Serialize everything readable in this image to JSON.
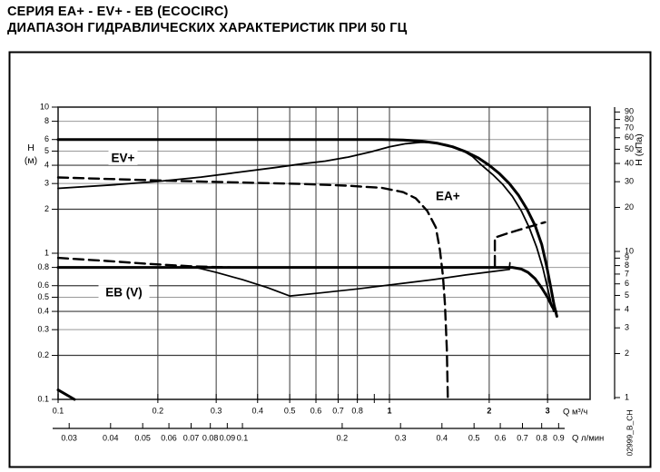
{
  "header": {
    "line1": "СЕРИЯ EA+ - EV+ - EB (ECOCIRC)",
    "line2": "ДИАПАЗОН ГИДРАВЛИЧЕСКИХ ХАРАКТЕРИСТИК ПРИ 50 ГЦ"
  },
  "watermark": "02999_B_CH",
  "colors": {
    "curve": "#000000",
    "grid_light": "#999999",
    "grid_dark": "#3c3c3c",
    "grid_vertical": "#4a4a4a",
    "plot_border": "#222222",
    "figure_border": "#000000"
  },
  "chart_data": {
    "type": "line",
    "log_x": true,
    "log_y": true,
    "title": "Диапазон гидравлических характеристик при 50 Гц",
    "x_axis_m3h": {
      "label": "Q  м³/ч",
      "range": [
        0.1,
        4.0
      ],
      "ticks_labeled": [
        0.1,
        0.2,
        0.3,
        0.4,
        0.5,
        0.6,
        0.7,
        0.8,
        1,
        2,
        3
      ],
      "ticks_unlabeled": [
        0.9
      ]
    },
    "x_axis_lmin": {
      "label": "Q  л/мин",
      "ticks": [
        0.03,
        0.04,
        0.05,
        0.06,
        0.07,
        0.08,
        0.09,
        0.1,
        0.2,
        0.3,
        0.4,
        0.5,
        0.6,
        0.7,
        0.8,
        0.9
      ],
      "conversion_to_m3h": 3.6
    },
    "y_axis_m": {
      "label_line1": "H",
      "label_line2": "(м)",
      "range": [
        0.1,
        10
      ],
      "ticks": [
        10,
        8,
        6,
        5,
        4,
        3,
        2,
        1,
        0.8,
        0.6,
        0.5,
        0.4,
        0.3,
        0.2,
        0.1
      ]
    },
    "y_axis_kpa": {
      "label": "H (кПа)",
      "ticks": [
        90,
        80,
        70,
        60,
        50,
        40,
        30,
        20,
        10,
        9,
        8,
        7,
        6,
        5,
        4,
        3,
        2,
        1
      ],
      "conversion_m_per_10kpa": 1
    },
    "gridlines": {
      "vertical_q": [
        0.2,
        0.3,
        0.4,
        0.5,
        0.6,
        0.7,
        0.8,
        1,
        2,
        3
      ],
      "horizontal_dark_h": [
        0.2,
        0.4,
        0.6,
        2,
        4
      ],
      "horizontal_light_h": [
        0.3,
        0.5,
        0.8,
        1,
        3,
        5,
        6,
        8
      ]
    },
    "series": [
      {
        "id": "ev-plus-max-curve",
        "style": "solid",
        "stroke_width": 3.0,
        "points": [
          [
            0.1,
            6
          ],
          [
            0.95,
            6
          ],
          [
            1.1,
            5.95
          ],
          [
            1.25,
            5.85
          ],
          [
            1.4,
            5.65
          ],
          [
            1.55,
            5.35
          ],
          [
            1.7,
            4.95
          ],
          [
            1.85,
            4.5
          ],
          [
            2.0,
            4.0
          ],
          [
            2.15,
            3.5
          ],
          [
            2.3,
            3.0
          ],
          [
            2.45,
            2.5
          ],
          [
            2.6,
            2.0
          ],
          [
            2.75,
            1.55
          ],
          [
            2.88,
            1.15
          ],
          [
            2.98,
            0.82
          ],
          [
            3.07,
            0.58
          ],
          [
            3.14,
            0.44
          ],
          [
            3.2,
            0.37
          ]
        ]
      },
      {
        "id": "ea-plus-max-curve",
        "style": "solid",
        "stroke_width": 1.8,
        "points": [
          [
            0.1,
            2.78
          ],
          [
            0.15,
            2.95
          ],
          [
            0.2,
            3.1
          ],
          [
            0.27,
            3.32
          ],
          [
            0.34,
            3.55
          ],
          [
            0.45,
            3.85
          ],
          [
            0.55,
            4.1
          ],
          [
            0.64,
            4.27
          ],
          [
            0.75,
            4.55
          ],
          [
            0.88,
            4.95
          ],
          [
            1.0,
            5.35
          ],
          [
            1.12,
            5.62
          ],
          [
            1.25,
            5.75
          ],
          [
            1.38,
            5.7
          ],
          [
            1.5,
            5.5
          ],
          [
            1.65,
            5.1
          ],
          [
            1.78,
            4.6
          ],
          [
            1.9,
            4.0
          ],
          [
            2.05,
            3.45
          ],
          [
            2.2,
            2.95
          ],
          [
            2.35,
            2.45
          ],
          [
            2.5,
            1.95
          ],
          [
            2.64,
            1.5
          ],
          [
            2.78,
            1.1
          ],
          [
            2.9,
            0.8
          ],
          [
            3.0,
            0.58
          ],
          [
            3.08,
            0.45
          ],
          [
            3.13,
            0.4
          ]
        ]
      },
      {
        "id": "small-pump-dashed-curve",
        "style": "dashed",
        "stroke_width": 2.4,
        "points": [
          [
            0.1,
            3.3
          ],
          [
            0.2,
            3.15
          ],
          [
            0.35,
            3.05
          ],
          [
            0.55,
            2.98
          ],
          [
            0.75,
            2.9
          ],
          [
            0.95,
            2.8
          ],
          [
            1.1,
            2.62
          ],
          [
            1.2,
            2.38
          ],
          [
            1.3,
            1.95
          ],
          [
            1.38,
            1.5
          ],
          [
            1.42,
            1.05
          ],
          [
            1.45,
            0.7
          ],
          [
            1.47,
            0.45
          ],
          [
            1.49,
            0.22
          ],
          [
            1.5,
            0.1
          ]
        ]
      },
      {
        "id": "eb-v-max-curve",
        "style": "solid",
        "stroke_width": 3.0,
        "points": [
          [
            0.1,
            0.8
          ],
          [
            2.35,
            0.8
          ],
          [
            2.5,
            0.78
          ],
          [
            2.62,
            0.74
          ],
          [
            2.75,
            0.67
          ],
          [
            2.88,
            0.58
          ],
          [
            3.0,
            0.5
          ],
          [
            3.1,
            0.43
          ],
          [
            3.18,
            0.4
          ]
        ]
      },
      {
        "id": "eb-v-min-curve",
        "style": "solid",
        "stroke_width": 1.7,
        "points": [
          [
            0.26,
            0.8
          ],
          [
            0.3,
            0.74
          ],
          [
            0.36,
            0.66
          ],
          [
            0.43,
            0.58
          ],
          [
            0.5,
            0.51
          ],
          [
            0.62,
            0.535
          ],
          [
            0.8,
            0.57
          ],
          [
            1.05,
            0.615
          ],
          [
            1.35,
            0.66
          ],
          [
            1.7,
            0.71
          ],
          [
            2.05,
            0.75
          ],
          [
            2.3,
            0.775
          ]
        ]
      },
      {
        "id": "eb-v-step-segment",
        "style": "solid",
        "stroke_width": 1.7,
        "points": [
          [
            2.3,
            0.775
          ],
          [
            2.31,
            0.86
          ]
        ]
      },
      {
        "id": "dashed-low-left-curve",
        "style": "dashed",
        "stroke_width": 2.4,
        "points": [
          [
            0.1,
            0.93
          ],
          [
            0.14,
            0.885
          ],
          [
            0.19,
            0.845
          ],
          [
            0.25,
            0.815
          ],
          [
            0.33,
            0.8
          ]
        ]
      },
      {
        "id": "dashed-step-right-curve",
        "style": "dashed",
        "stroke_width": 2.4,
        "points": [
          [
            2.08,
            0.82
          ],
          [
            2.08,
            1.28
          ],
          [
            2.3,
            1.38
          ],
          [
            2.6,
            1.5
          ],
          [
            2.95,
            1.63
          ]
        ]
      },
      {
        "id": "corner-stub-segment",
        "style": "solid",
        "stroke_width": 3.0,
        "points": [
          [
            0.1,
            0.116
          ],
          [
            0.112,
            0.1
          ]
        ]
      }
    ],
    "region_labels": [
      {
        "text": "EV+",
        "q": 0.157,
        "h": 4.5
      },
      {
        "text": "EA+",
        "q": 1.5,
        "h": 2.46
      },
      {
        "text": "EB (V)",
        "q": 0.158,
        "h": 0.54
      }
    ]
  }
}
